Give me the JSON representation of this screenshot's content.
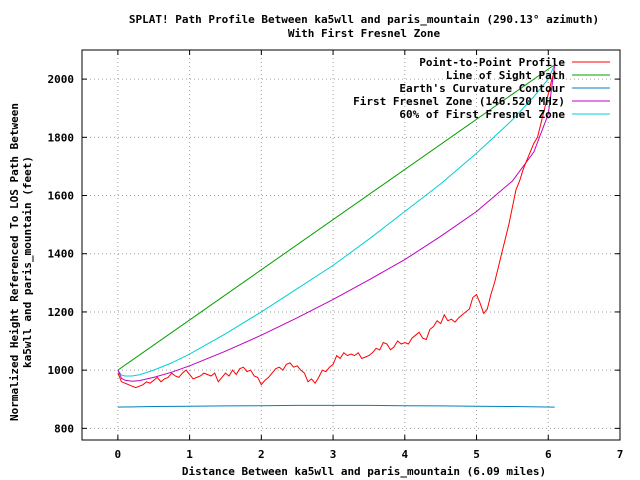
{
  "chart_data": {
    "type": "line",
    "title": "SPLAT! Path Profile Between ka5wll and paris_mountain (290.13° azimuth)",
    "subtitle": "With First Fresnel Zone",
    "xlabel": "Distance Between ka5wll and paris_mountain (6.09 miles)",
    "ylabel_line1": "Normalized Height Referenced To LOS Path Between",
    "ylabel_line2": "ka5wll and paris_mountain (feet)",
    "xlim": [
      -0.5,
      7
    ],
    "ylim": [
      760,
      2100
    ],
    "x_ticks": [
      0,
      1,
      2,
      3,
      4,
      5,
      6,
      7
    ],
    "y_ticks": [
      800,
      1000,
      1200,
      1400,
      1600,
      1800,
      2000
    ],
    "grid": true,
    "legend_position": "top-right",
    "series": [
      {
        "name": "Point-to-Point Profile",
        "color": "#ff0000",
        "x": [
          0,
          0.05,
          0.1,
          0.15,
          0.2,
          0.25,
          0.3,
          0.35,
          0.4,
          0.45,
          0.5,
          0.55,
          0.6,
          0.65,
          0.7,
          0.75,
          0.8,
          0.85,
          0.9,
          0.95,
          1.0,
          1.05,
          1.1,
          1.15,
          1.2,
          1.25,
          1.3,
          1.35,
          1.4,
          1.45,
          1.5,
          1.55,
          1.6,
          1.65,
          1.7,
          1.75,
          1.8,
          1.85,
          1.9,
          1.95,
          2.0,
          2.05,
          2.1,
          2.15,
          2.2,
          2.25,
          2.3,
          2.35,
          2.4,
          2.45,
          2.5,
          2.55,
          2.6,
          2.65,
          2.7,
          2.75,
          2.8,
          2.85,
          2.9,
          2.95,
          3.0,
          3.05,
          3.1,
          3.15,
          3.2,
          3.25,
          3.3,
          3.35,
          3.4,
          3.45,
          3.5,
          3.55,
          3.6,
          3.65,
          3.7,
          3.75,
          3.8,
          3.85,
          3.9,
          3.95,
          4.0,
          4.05,
          4.1,
          4.15,
          4.2,
          4.25,
          4.3,
          4.35,
          4.4,
          4.45,
          4.5,
          4.55,
          4.6,
          4.65,
          4.7,
          4.75,
          4.8,
          4.85,
          4.9,
          4.95,
          5.0,
          5.05,
          5.1,
          5.15,
          5.2,
          5.25,
          5.3,
          5.35,
          5.4,
          5.45,
          5.5,
          5.55,
          5.6,
          5.65,
          5.7,
          5.75,
          5.8,
          5.85,
          5.9,
          5.95,
          6.0,
          6.05,
          6.09
        ],
        "y": [
          990,
          960,
          955,
          950,
          945,
          940,
          945,
          950,
          960,
          955,
          965,
          975,
          960,
          970,
          975,
          990,
          980,
          975,
          990,
          1000,
          985,
          970,
          975,
          980,
          990,
          985,
          980,
          990,
          960,
          975,
          990,
          980,
          1000,
          985,
          1005,
          1010,
          995,
          1000,
          980,
          975,
          950,
          965,
          975,
          990,
          1005,
          1010,
          1000,
          1020,
          1025,
          1010,
          1015,
          1000,
          990,
          960,
          970,
          955,
          975,
          1000,
          995,
          1010,
          1020,
          1050,
          1040,
          1060,
          1050,
          1055,
          1050,
          1060,
          1040,
          1045,
          1050,
          1060,
          1075,
          1070,
          1095,
          1090,
          1070,
          1080,
          1100,
          1090,
          1095,
          1090,
          1110,
          1120,
          1130,
          1110,
          1105,
          1140,
          1150,
          1170,
          1160,
          1190,
          1170,
          1175,
          1165,
          1180,
          1190,
          1200,
          1210,
          1250,
          1260,
          1230,
          1195,
          1210,
          1260,
          1300,
          1350,
          1400,
          1450,
          1500,
          1560,
          1620,
          1650,
          1690,
          1720,
          1750,
          1780,
          1800,
          1850,
          1900,
          1950,
          2000,
          2030
        ]
      },
      {
        "name": "Line of Sight Path",
        "color": "#00a000",
        "x": [
          0,
          6.09
        ],
        "y": [
          1000,
          2050
        ]
      },
      {
        "name": "Earth's Curvature Contour",
        "color": "#0080c0",
        "x": [
          0,
          0.5,
          1.0,
          1.5,
          2.0,
          2.5,
          3.0,
          3.5,
          4.0,
          4.5,
          5.0,
          5.5,
          6.09
        ],
        "y": [
          873,
          875,
          876,
          877,
          878,
          879,
          879,
          879,
          878,
          877,
          876,
          875,
          873
        ]
      },
      {
        "name": "First Fresnel Zone (146.520 MHz)",
        "color": "#c000c0",
        "x": [
          0,
          0.05,
          0.1,
          0.2,
          0.3,
          0.5,
          0.75,
          1.0,
          1.5,
          2.0,
          2.5,
          3.0,
          3.5,
          4.0,
          4.5,
          5.0,
          5.5,
          5.8,
          6.0,
          6.09
        ],
        "y": [
          1000,
          972,
          965,
          962,
          964,
          975,
          993,
          1015,
          1065,
          1120,
          1180,
          1243,
          1310,
          1380,
          1460,
          1545,
          1650,
          1750,
          1880,
          2050
        ]
      },
      {
        "name": "60% of First Fresnel Zone",
        "color": "#00d0d0",
        "x": [
          0,
          0.05,
          0.1,
          0.2,
          0.3,
          0.5,
          0.75,
          1.0,
          1.5,
          2.0,
          2.5,
          3.0,
          3.5,
          4.0,
          4.5,
          5.0,
          5.5,
          5.8,
          6.0,
          6.09
        ],
        "y": [
          1000,
          983,
          980,
          980,
          984,
          1000,
          1025,
          1055,
          1125,
          1200,
          1280,
          1360,
          1450,
          1545,
          1640,
          1745,
          1860,
          1940,
          2000,
          2050
        ]
      }
    ]
  }
}
